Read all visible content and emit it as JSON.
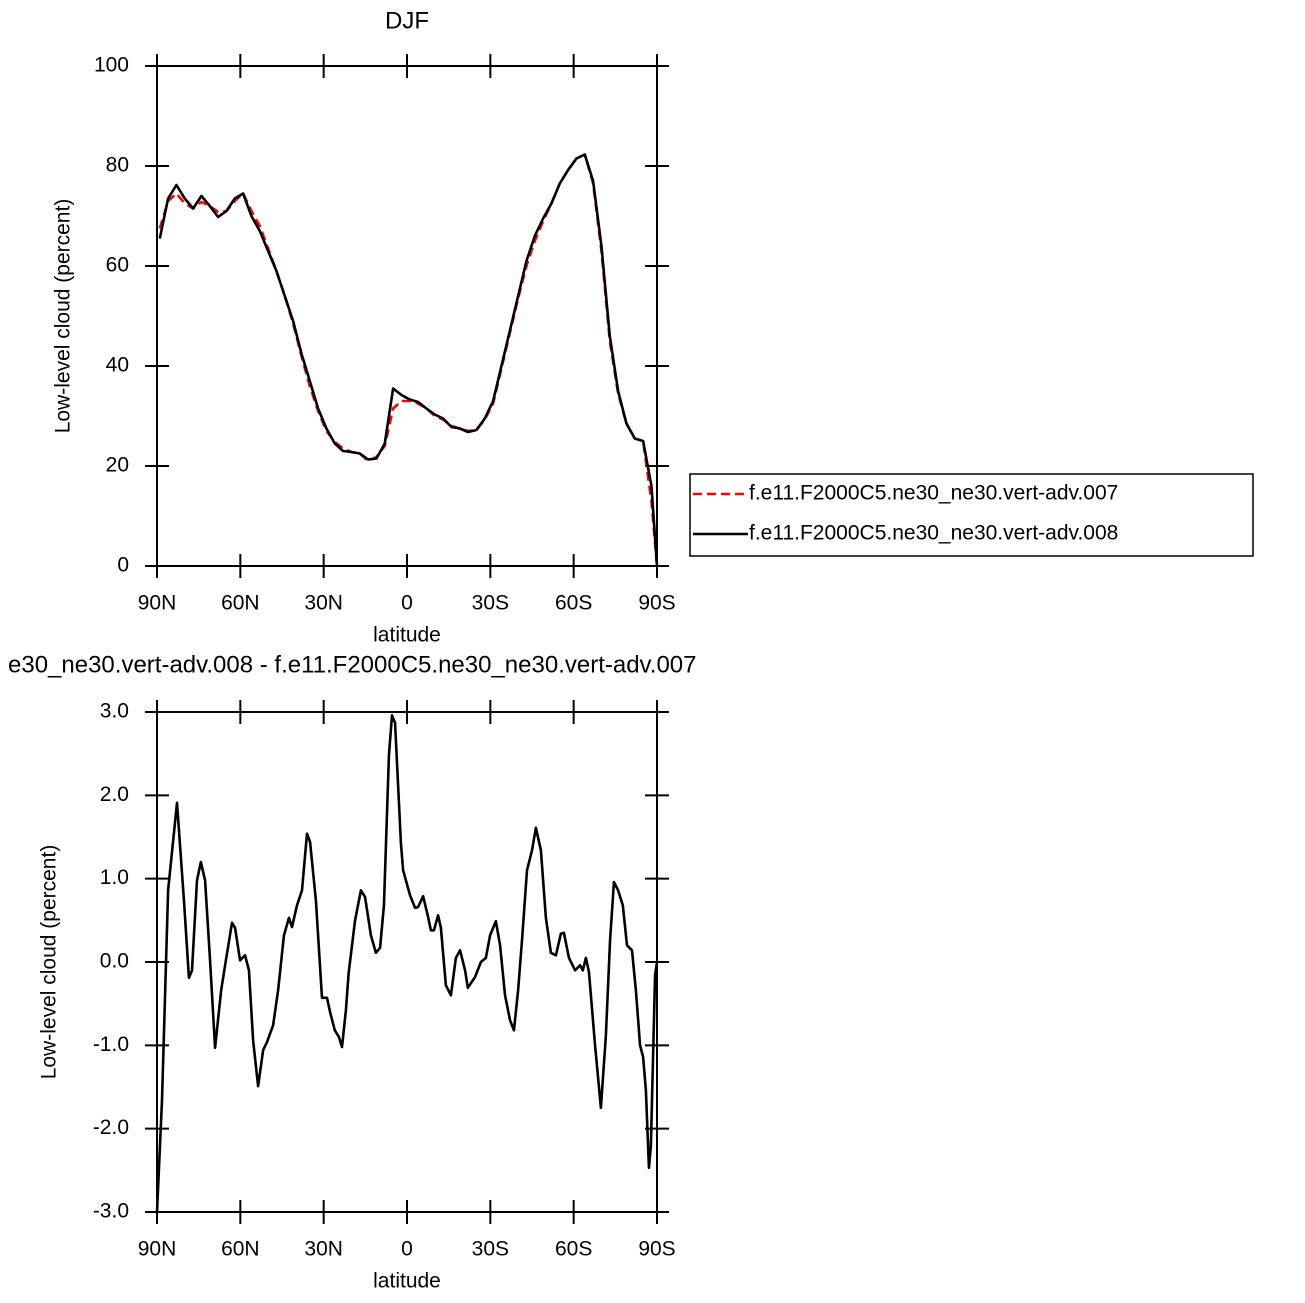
{
  "chart_data": [
    {
      "type": "line",
      "title": "DJF",
      "x_label": "latitude",
      "y_label": "Low-level cloud (percent)",
      "xlim": [
        90,
        -90
      ],
      "xticks": [
        {
          "value": 90,
          "label": "90N"
        },
        {
          "value": 60,
          "label": "60N"
        },
        {
          "value": 30,
          "label": "30N"
        },
        0,
        {
          "value": -30,
          "label": "30S"
        },
        {
          "value": -60,
          "label": "60S"
        },
        {
          "value": -90,
          "label": "90S"
        }
      ],
      "ylim": [
        0,
        100
      ],
      "yticks": [
        0,
        20,
        40,
        60,
        80,
        100
      ],
      "legend": "right",
      "x": [
        89,
        86,
        83,
        80,
        77,
        74,
        71,
        68,
        65,
        62,
        59,
        56,
        53,
        50,
        47,
        44,
        41,
        38,
        35,
        32,
        29,
        26,
        23,
        20,
        17,
        14,
        11,
        8,
        5,
        2,
        -1,
        -4,
        -7,
        -10,
        -13,
        -16,
        -19,
        -22,
        -25,
        -28,
        -31,
        -34,
        -37,
        -40,
        -43,
        -46,
        -49,
        -52,
        -55,
        -58,
        -61,
        -64,
        -67,
        -70,
        -73,
        -76,
        -79,
        -82,
        -85,
        -88,
        -90
      ],
      "series": [
        {
          "name": "f.e11.F2000C5.ne30_ne30.vert-adv.007",
          "color": "#ff0000",
          "dashed": true,
          "values": [
            67.5,
            73,
            74.5,
            72.5,
            71.5,
            72.8,
            72,
            70.8,
            71,
            73,
            74.5,
            71,
            68,
            63.5,
            59,
            54,
            48.5,
            42,
            36,
            31,
            27,
            24.8,
            23.5,
            22.8,
            22.5,
            21,
            21.8,
            24,
            31.5,
            33,
            33,
            32.5,
            31.5,
            30,
            29.3,
            28,
            27.5,
            27,
            27.2,
            29.3,
            32.5,
            39.5,
            46.5,
            53.5,
            60,
            65,
            69,
            72.5,
            76.5,
            79.2,
            81.5,
            82.3,
            76.5,
            63,
            45,
            34.5,
            28.5,
            25.5,
            25,
            13,
            0
          ]
        },
        {
          "name": "f.e11.F2000C5.ne30_ne30.vert-adv.008",
          "color": "#000000",
          "dashed": false,
          "values": [
            65.5,
            73.5,
            76.2,
            73.5,
            71.5,
            74,
            72,
            69.8,
            71,
            73.5,
            74.5,
            70,
            67,
            63,
            59,
            54,
            49,
            42.5,
            37,
            31.5,
            27.5,
            24.5,
            23,
            22.8,
            22.5,
            21.3,
            21.5,
            24.5,
            35.5,
            34.2,
            33.3,
            32.8,
            31.5,
            30.3,
            29.5,
            27.8,
            27.5,
            26.8,
            27.2,
            29.5,
            33,
            40,
            47,
            54,
            61,
            66,
            69.5,
            72.5,
            76.5,
            79.2,
            81.5,
            82.3,
            77,
            64,
            46,
            35,
            28.5,
            25.5,
            25,
            16,
            0
          ]
        }
      ]
    },
    {
      "type": "line",
      "title": "e30_ne30.vert-adv.008 - f.e11.F2000C5.ne30_ne30.vert-adv.007",
      "x_label": "latitude",
      "y_label": "Low-level cloud (percent)",
      "xlim": [
        90,
        -90
      ],
      "xticks": [
        {
          "value": 90,
          "label": "90N"
        },
        {
          "value": 60,
          "label": "60N"
        },
        {
          "value": 30,
          "label": "30N"
        },
        0,
        {
          "value": -30,
          "label": "30S"
        },
        {
          "value": -60,
          "label": "60S"
        },
        {
          "value": -90,
          "label": "90S"
        }
      ],
      "ylim": [
        -3,
        3
      ],
      "yticks": [
        {
          "value": -3,
          "label": "-3.0"
        },
        {
          "value": -2,
          "label": "-2.0"
        },
        {
          "value": -1,
          "label": "-1.0"
        },
        {
          "value": 0,
          "label": "0.0"
        },
        {
          "value": 1,
          "label": "1.0"
        },
        {
          "value": 2,
          "label": "2.0"
        },
        {
          "value": 3,
          "label": "3.0"
        }
      ],
      "x": [
        90,
        88.2,
        86,
        82.8,
        80.3,
        78.5,
        77.4,
        75.6,
        74.2,
        72.7,
        70.9,
        69.1,
        66.9,
        65.2,
        63,
        61.9,
        60.1,
        58.3,
        56.9,
        55.4,
        53.6,
        51.8,
        50.4,
        48.2,
        46.4,
        44.3,
        42.5,
        41.4,
        39.6,
        37.8,
        36,
        34.9,
        32.8,
        30.6,
        28.8,
        27.7,
        26,
        24.5,
        23.4,
        22,
        21,
        18.7,
        16.6,
        15.1,
        13,
        11.2,
        9.7,
        8.3,
        6.5,
        5.4,
        4.3,
        2.2,
        1.4,
        -1.1,
        -2.9,
        -4,
        -5.8,
        -7.6,
        -8.6,
        -9.7,
        -11.2,
        -12.2,
        -14,
        -15.8,
        -17.6,
        -19.1,
        -20.9,
        -21.9,
        -24.5,
        -26.6,
        -28.4,
        -29.9,
        -32,
        -33.5,
        -35.3,
        -37.1,
        -38.5,
        -40,
        -41.4,
        -43.2,
        -45,
        -46.4,
        -48.2,
        -50,
        -51.8,
        -53.6,
        -55.4,
        -56.5,
        -58.3,
        -60.5,
        -62.3,
        -63.3,
        -64.4,
        -65.5,
        -67.7,
        -69.8,
        -71.6,
        -73.1,
        -74.5,
        -76,
        -77.7,
        -79.2,
        -81,
        -82.4,
        -83.9,
        -85,
        -86,
        -87.1,
        -87.8,
        -89.3,
        -90
      ],
      "series": [
        {
          "color": "#000000",
          "dashed": false,
          "values": [
            -3,
            -1.66,
            0.86,
            1.91,
            0.74,
            -0.19,
            -0.1,
            0.98,
            1.2,
            0.98,
            0.02,
            -1.03,
            -0.34,
            0.02,
            0.47,
            0.41,
            0.02,
            0.08,
            -0.1,
            -0.94,
            -1.49,
            -1.06,
            -0.96,
            -0.76,
            -0.34,
            0.32,
            0.53,
            0.42,
            0.68,
            0.86,
            1.54,
            1.44,
            0.74,
            -0.43,
            -0.43,
            -0.6,
            -0.82,
            -0.9,
            -1.02,
            -0.58,
            -0.13,
            0.5,
            0.86,
            0.78,
            0.32,
            0.11,
            0.17,
            0.68,
            2.48,
            2.96,
            2.87,
            1.43,
            1.1,
            0.8,
            0.65,
            0.66,
            0.79,
            0.54,
            0.38,
            0.38,
            0.56,
            0.41,
            -0.28,
            -0.4,
            0.05,
            0.14,
            -0.1,
            -0.31,
            -0.18,
            0,
            0.05,
            0.32,
            0.49,
            0.2,
            -0.4,
            -0.7,
            -0.82,
            -0.34,
            0.26,
            1.1,
            1.34,
            1.61,
            1.34,
            0.53,
            0.11,
            0.08,
            0.34,
            0.35,
            0.05,
            -0.1,
            -0.04,
            -0.1,
            0.05,
            -0.12,
            -1,
            -1.75,
            -0.88,
            0.26,
            0.96,
            0.86,
            0.68,
            0.2,
            0.14,
            -0.34,
            -1,
            -1.14,
            -1.54,
            -2.47,
            -2.2,
            -0.16,
            0
          ]
        }
      ]
    }
  ]
}
